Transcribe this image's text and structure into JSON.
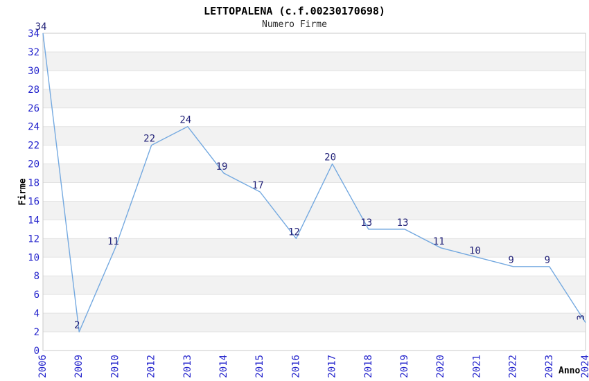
{
  "chart_data": {
    "type": "line",
    "title": "LETTOPALENA (c.f.00230170698)",
    "subtitle": "Numero Firme",
    "xlabel": "Anno",
    "ylabel": "Firme",
    "categories": [
      "2006",
      "2009",
      "2010",
      "2012",
      "2013",
      "2014",
      "2015",
      "2016",
      "2017",
      "2018",
      "2019",
      "2020",
      "2021",
      "2022",
      "2023",
      "2024"
    ],
    "values": [
      34,
      2,
      11,
      22,
      24,
      19,
      17,
      12,
      20,
      13,
      13,
      11,
      10,
      9,
      9,
      3
    ],
    "ylim": [
      0,
      34
    ],
    "ytick_step": 2,
    "grid": true,
    "legend": "none",
    "band_pattern": "alternating horizontal bands of 2 units, white then gray from top",
    "colors": {
      "line": "#74a9e0",
      "tick_label": "#2323cc",
      "data_label": "#232379",
      "band_fill": "#f2f2f2",
      "gridline": "#e3e3e3",
      "plot_border": "#c9c9c9",
      "title": "#000000",
      "subtitle": "#2b2b2b",
      "axis_title": "#000000",
      "background": "#ffffff"
    }
  }
}
